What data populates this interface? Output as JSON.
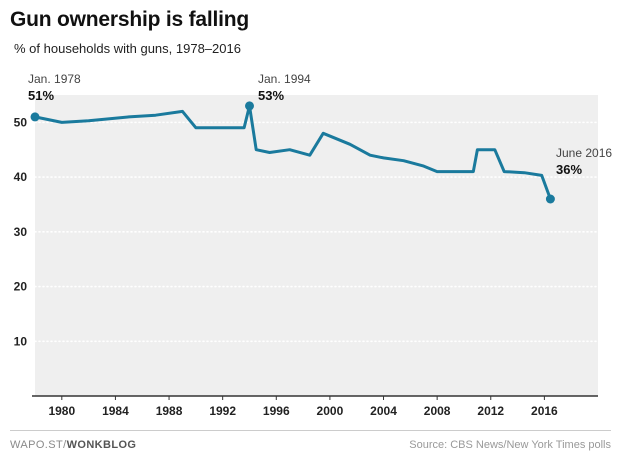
{
  "chart_data": {
    "type": "line",
    "title": "Gun ownership is falling",
    "subtitle": "% of households with guns, 1978–2016",
    "series_name": "% of U.S. households with guns",
    "points": [
      [
        1978,
        51
      ],
      [
        1980,
        50
      ],
      [
        1982,
        50.3
      ],
      [
        1985,
        51
      ],
      [
        1987,
        51.3
      ],
      [
        1989,
        52
      ],
      [
        1990,
        49
      ],
      [
        1992,
        49
      ],
      [
        1993.6,
        49
      ],
      [
        1994,
        53
      ],
      [
        1994.5,
        45
      ],
      [
        1995.5,
        44.5
      ],
      [
        1997,
        45
      ],
      [
        1998.5,
        44
      ],
      [
        1999.5,
        48
      ],
      [
        2000.5,
        47
      ],
      [
        2001.5,
        46
      ],
      [
        2003,
        44
      ],
      [
        2004,
        43.5
      ],
      [
        2005.5,
        43
      ],
      [
        2007,
        42
      ],
      [
        2008,
        41
      ],
      [
        2009.5,
        41
      ],
      [
        2010.7,
        41
      ],
      [
        2011,
        45
      ],
      [
        2012.3,
        45
      ],
      [
        2013,
        41
      ],
      [
        2014.5,
        40.8
      ],
      [
        2015.8,
        40.3
      ],
      [
        2016.45,
        36
      ]
    ],
    "markers": [
      {
        "x": 1978,
        "y": 51
      },
      {
        "x": 1994,
        "y": 53
      },
      {
        "x": 2016.45,
        "y": 36
      }
    ],
    "annotations": [
      {
        "label": "Jan. 1978",
        "value": "51%"
      },
      {
        "label": "Jan. 1994",
        "value": "53%"
      },
      {
        "label": "June 2016",
        "value": "36%"
      }
    ],
    "xlim": [
      1978,
      2020
    ],
    "ylim": [
      0,
      55
    ],
    "yticks": [
      10,
      20,
      30,
      40,
      50
    ],
    "xticks": [
      1980,
      1984,
      1988,
      1992,
      1996,
      2000,
      2004,
      2008,
      2012,
      2016
    ],
    "grid": true,
    "legend": "none",
    "line_color": "#1a7a9d",
    "marker_color": "#1a7a9d",
    "plot_bg": "#efefef",
    "grid_color": "#ffffff",
    "axis_color": "#333333"
  },
  "footer": {
    "brand_prefix": "WAPO.ST/",
    "brand_bold": "WONKBLOG",
    "source": "Source: CBS News/New York Times polls"
  }
}
